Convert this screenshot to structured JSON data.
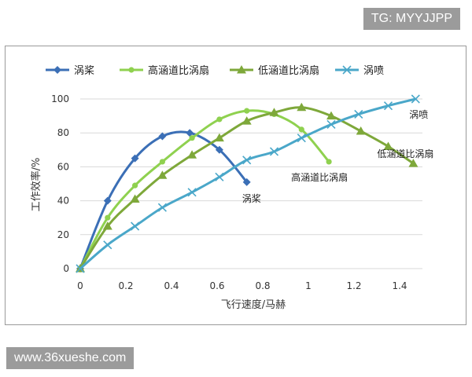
{
  "watermark_top": "TG: MYYJJPP",
  "watermark_bottom": "www.36xueshe.com",
  "chart_data": {
    "type": "line",
    "xlabel": "飞行速度/马赫",
    "ylabel": "工作效率/%",
    "xlim": [
      0,
      1.5
    ],
    "ylim": [
      0,
      100
    ],
    "x_ticks": [
      "0",
      "0.2",
      "0.4",
      "0.6",
      "0.8",
      "1",
      "1.2",
      "1.4"
    ],
    "y_ticks": [
      "0",
      "20",
      "40",
      "60",
      "80",
      "100"
    ],
    "grid": "horizontal",
    "legend": "top",
    "series": [
      {
        "name": "涡桨",
        "color": "#3b6fb6",
        "marker": "diamond",
        "points": [
          [
            0,
            0
          ],
          [
            0.12,
            40
          ],
          [
            0.24,
            65
          ],
          [
            0.36,
            78
          ],
          [
            0.48,
            80
          ],
          [
            0.61,
            70
          ],
          [
            0.73,
            51
          ]
        ],
        "end_label": "涡桨"
      },
      {
        "name": "高涵道比涡扇",
        "color": "#8fd14f",
        "marker": "circle",
        "points": [
          [
            0,
            0
          ],
          [
            0.12,
            30
          ],
          [
            0.24,
            49
          ],
          [
            0.36,
            63
          ],
          [
            0.49,
            77
          ],
          [
            0.61,
            88
          ],
          [
            0.73,
            93
          ],
          [
            0.85,
            91
          ],
          [
            0.97,
            82
          ],
          [
            1.09,
            63
          ]
        ],
        "end_label": "高涵道比涡扇"
      },
      {
        "name": "低涵道比涡扇",
        "color": "#7ea83a",
        "marker": "triangle",
        "points": [
          [
            0,
            0
          ],
          [
            0.12,
            25
          ],
          [
            0.24,
            41
          ],
          [
            0.36,
            55
          ],
          [
            0.49,
            67
          ],
          [
            0.61,
            77
          ],
          [
            0.73,
            87
          ],
          [
            0.85,
            92
          ],
          [
            0.97,
            95
          ],
          [
            1.1,
            90
          ],
          [
            1.23,
            81
          ],
          [
            1.35,
            72
          ],
          [
            1.46,
            62
          ]
        ],
        "end_label": "低涵道比涡扇"
      },
      {
        "name": "涡喷",
        "color": "#4aa7c9",
        "marker": "x",
        "points": [
          [
            0,
            0
          ],
          [
            0.12,
            14
          ],
          [
            0.24,
            25
          ],
          [
            0.36,
            36
          ],
          [
            0.49,
            45
          ],
          [
            0.61,
            54
          ],
          [
            0.73,
            64
          ],
          [
            0.85,
            69
          ],
          [
            0.97,
            77
          ],
          [
            1.1,
            85
          ],
          [
            1.22,
            91
          ],
          [
            1.35,
            96
          ],
          [
            1.47,
            100
          ]
        ],
        "end_label": "涡喷"
      }
    ]
  }
}
